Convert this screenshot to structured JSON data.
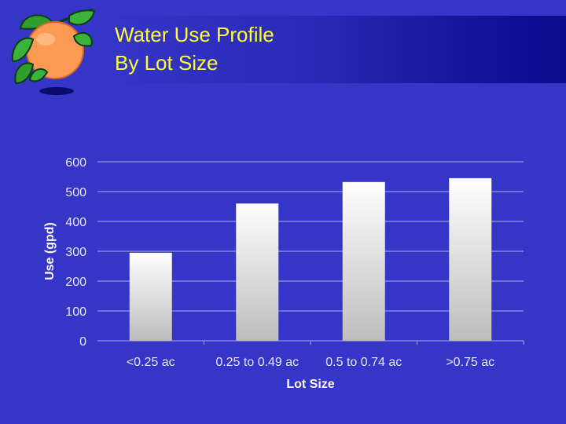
{
  "slide": {
    "title_line1": "Water Use Profile",
    "title_line2": "By Lot Size"
  },
  "logo": {
    "icon": "orange-fruit-icon"
  },
  "colors": {
    "background": "#3535c8",
    "title_text": "#ffff33",
    "bar_top": "#ffffff",
    "bar_bottom": "#bdbdbd",
    "gridline": "#a9a9e6"
  },
  "chart_data": {
    "type": "bar",
    "categories": [
      "<0.25 ac",
      "0.25 to 0.49 ac",
      "0.5 to 0.74 ac",
      ">0.75 ac"
    ],
    "values": [
      295,
      460,
      532,
      545
    ],
    "xlabel": "Lot Size",
    "ylabel": "Use (gpd)",
    "ylim": [
      0,
      600
    ],
    "yticks": [
      "0",
      "100",
      "200",
      "300",
      "400",
      "500",
      "600"
    ],
    "grid": true,
    "legend": "none"
  }
}
